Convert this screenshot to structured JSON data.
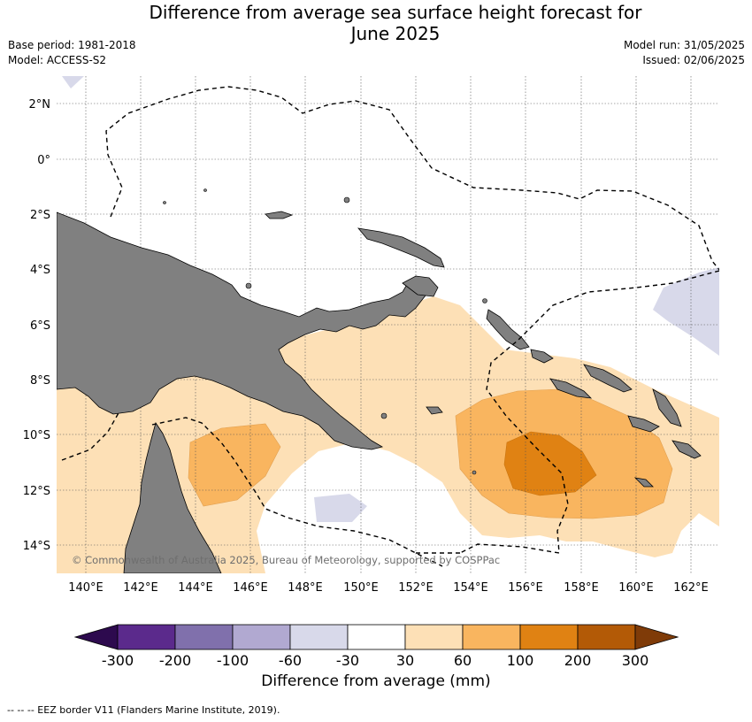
{
  "title_line1": "Difference from average sea surface height forecast for",
  "title_line2": "June 2025",
  "meta": {
    "base_period": "Base period: 1981-2018",
    "model": "Model: ACCESS-S2",
    "model_run": "Model run: 31/05/2025",
    "issued": "Issued: 02/06/2025"
  },
  "map": {
    "lat_labels": [
      "2°N",
      "0°",
      "2°S",
      "4°S",
      "6°S",
      "8°S",
      "10°S",
      "12°S",
      "14°S"
    ],
    "lon_labels": [
      "140°E",
      "142°E",
      "144°E",
      "146°E",
      "148°E",
      "150°E",
      "152°E",
      "154°E",
      "156°E",
      "158°E",
      "160°E",
      "162°E"
    ],
    "copyright": "© Commonwealth of Australia 2025, Bureau of Meteorology, supported by COSPPac",
    "colors": {
      "land": "#808080",
      "anom_30_60": "#fde0b6",
      "anom_60_100": "#f9b55f",
      "anom_100_200": "#e08213",
      "anom_neg_60_30": "#d8d9ea"
    }
  },
  "colorbar": {
    "title": "Difference from average (mm)",
    "ticks": [
      "-300",
      "-200",
      "-100",
      "-60",
      "-30",
      "30",
      "60",
      "100",
      "200",
      "300"
    ],
    "colors": [
      "#2d0a4e",
      "#5b2a8c",
      "#8070ac",
      "#b1a9d1",
      "#d8d9ea",
      "#ffffff",
      "#fde0b6",
      "#f9b55f",
      "#e08213",
      "#b35a06",
      "#7f3b08"
    ]
  },
  "footer": "--  --  -- EEZ border V11 (Flanders Marine Institute, 2019)."
}
